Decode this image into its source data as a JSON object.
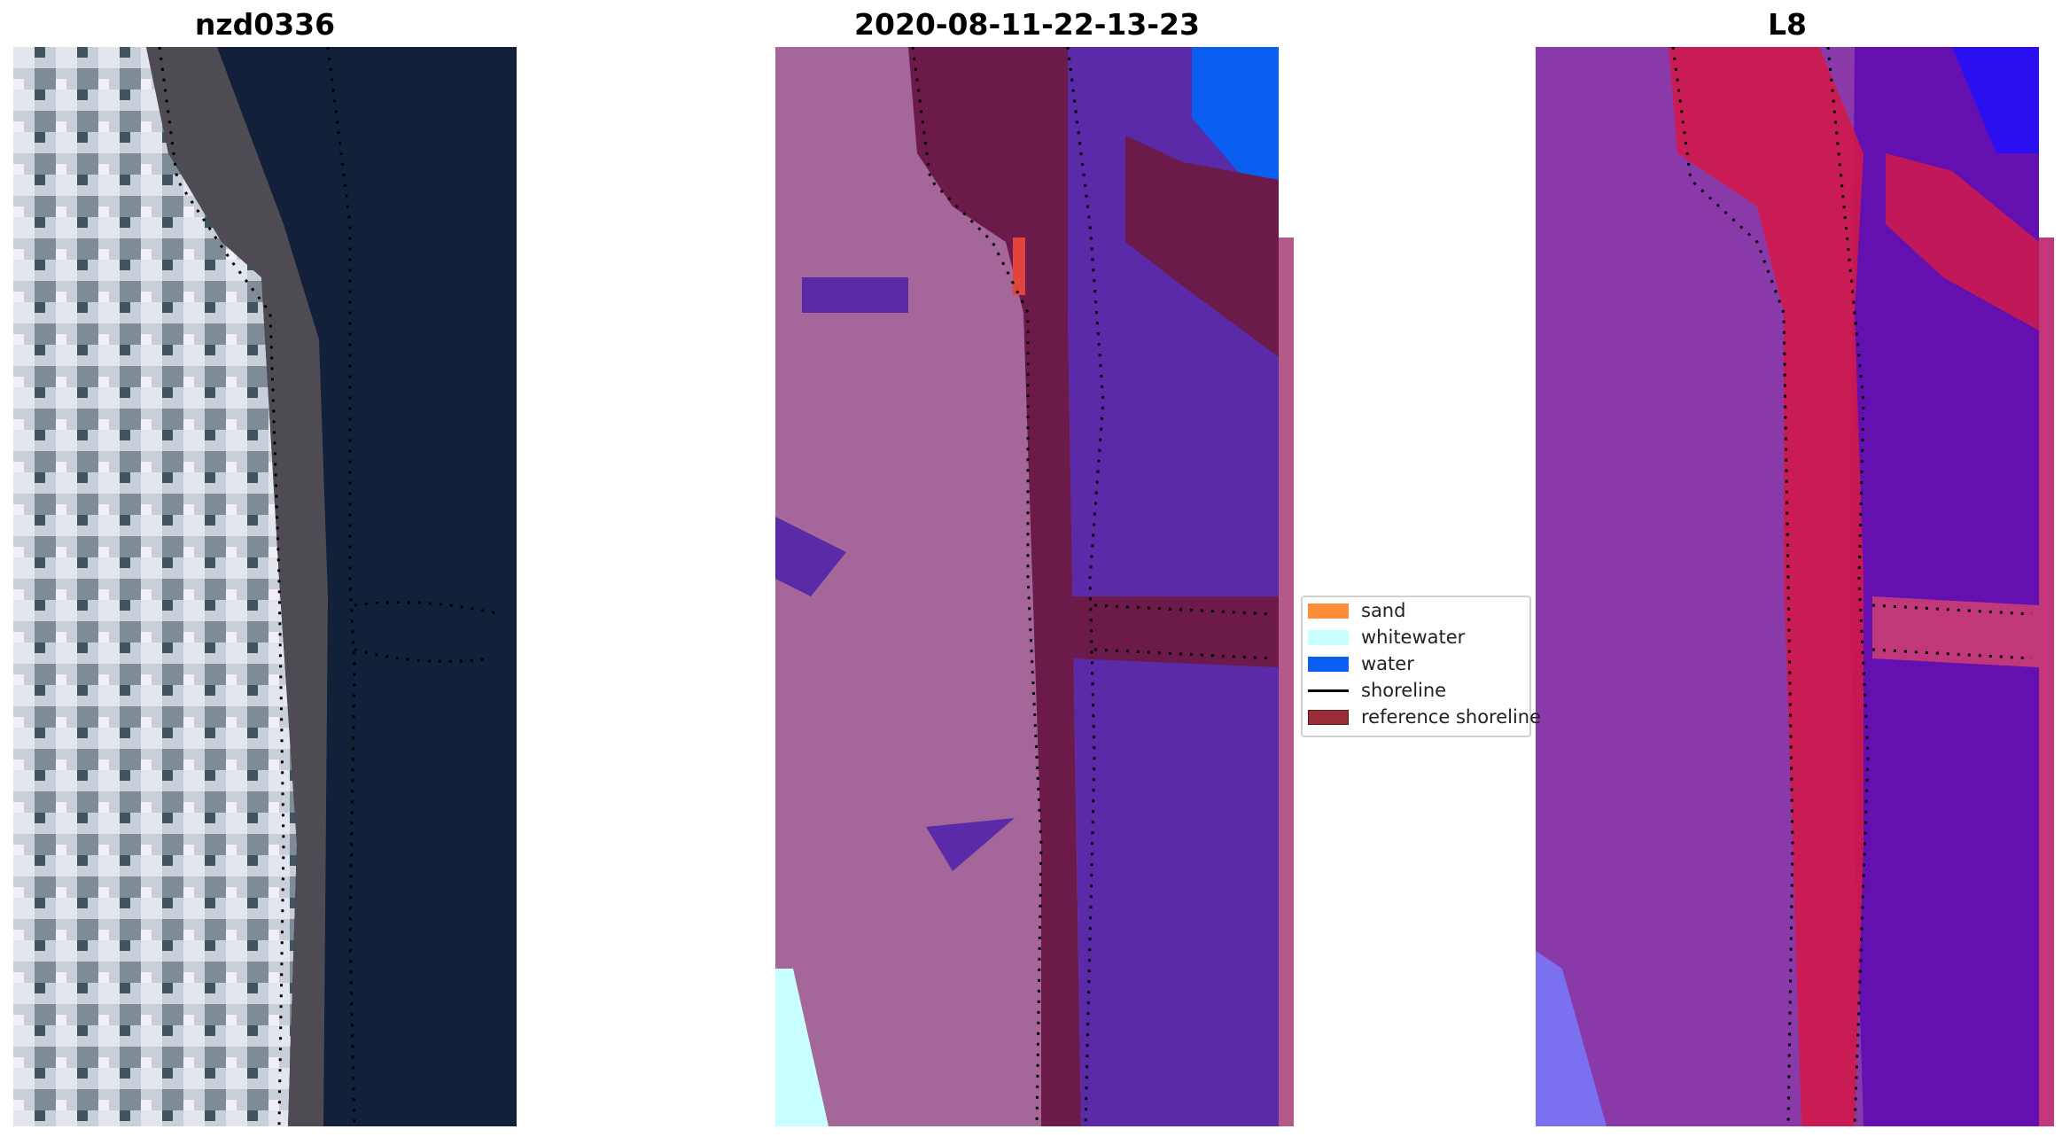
{
  "panels": [
    {
      "title": "nzd0336"
    },
    {
      "title": "2020-08-11-22-13-23"
    },
    {
      "title": "L8"
    }
  ],
  "legend": {
    "items": [
      {
        "label": "sand",
        "color": "#ff8c3a",
        "kind": "patch"
      },
      {
        "label": "whitewater",
        "color": "#c8ffff",
        "kind": "patch"
      },
      {
        "label": "water",
        "color": "#0a5ff0",
        "kind": "patch"
      },
      {
        "label": "shoreline",
        "color": "#000000",
        "kind": "line"
      },
      {
        "label": "reference shoreline",
        "color": "#9c2c38",
        "kind": "patch"
      }
    ]
  },
  "colors": {
    "land_rgb": "#c9cfd9",
    "sea_rgb": "#12203a",
    "class_land": "#a5679a",
    "class_beach": "#6b1a4a",
    "class_water_overlay": "#5a2aa8",
    "class_water": "#0a5ff0",
    "class_whitewater": "#c8ffff",
    "mndwi_land": "#8a3aa8",
    "mndwi_sand": "#d01a4a",
    "mndwi_water": "#6410b0"
  }
}
